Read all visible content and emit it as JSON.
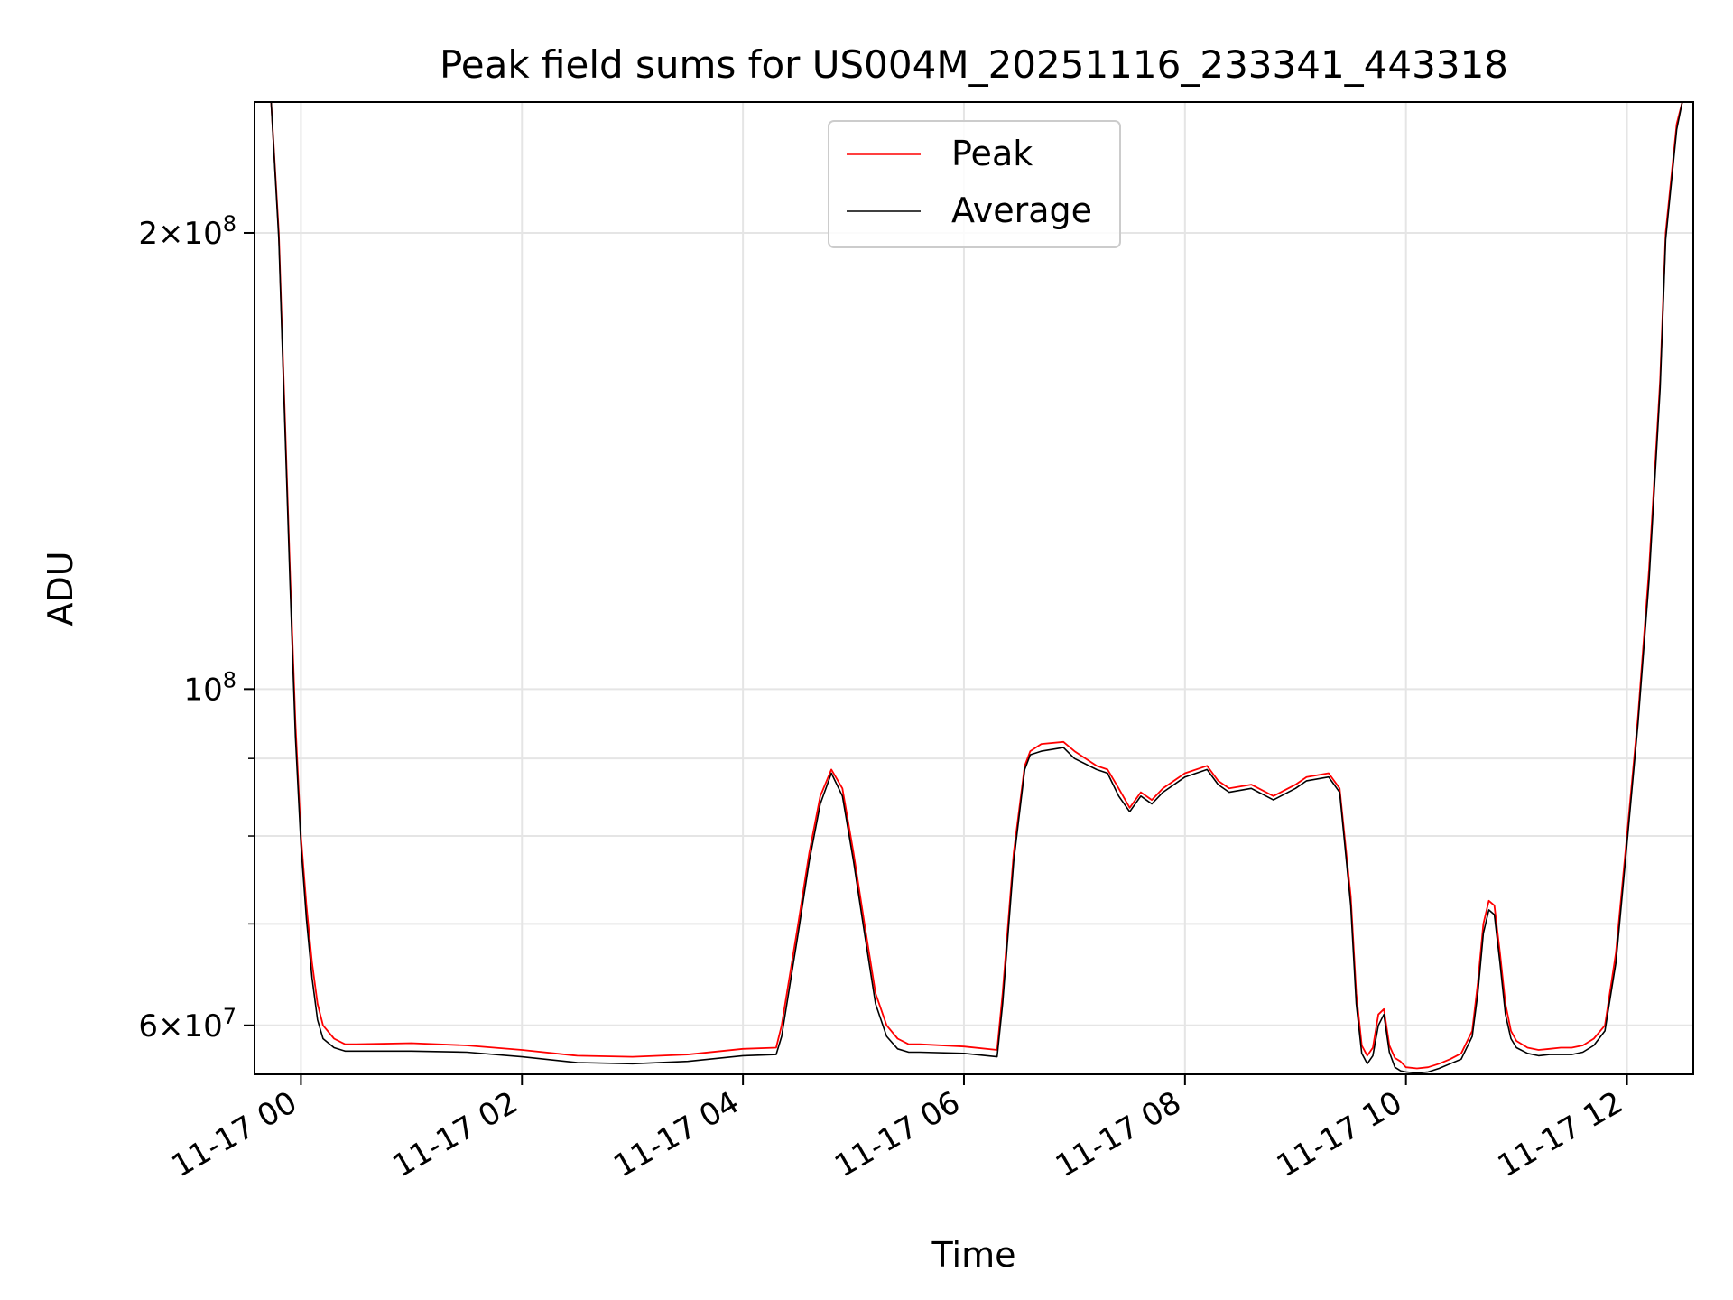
{
  "chart_data": {
    "type": "line",
    "title": "Peak field sums for US004M_20251116_233341_443318",
    "xlabel": "Time",
    "ylabel": "ADU",
    "yscale": "log",
    "grid": true,
    "legend_position": "top-center",
    "x_unit": "hours since 2025-11-17 00:00",
    "xlim": [
      -0.42,
      12.6
    ],
    "ylim": [
      55700000,
      244000000
    ],
    "x_ticks": [
      {
        "value": 0,
        "label": "11-17 00"
      },
      {
        "value": 2,
        "label": "11-17 02"
      },
      {
        "value": 4,
        "label": "11-17 04"
      },
      {
        "value": 6,
        "label": "11-17 06"
      },
      {
        "value": 8,
        "label": "11-17 08"
      },
      {
        "value": 10,
        "label": "11-17 10"
      },
      {
        "value": 12,
        "label": "11-17 12"
      }
    ],
    "y_major_ticks": [
      {
        "value": 60000000,
        "mantissa": "6",
        "exp": "7"
      },
      {
        "value": 100000000,
        "mantissa": "",
        "exp": "8"
      },
      {
        "value": 200000000,
        "mantissa": "2",
        "exp": "8"
      }
    ],
    "y_minor_ticks": [
      70000000,
      80000000,
      90000000
    ],
    "series": [
      {
        "name": "Peak",
        "color": "#ff0000",
        "x": [
          -0.3,
          -0.27,
          -0.2,
          -0.1,
          -0.05,
          0,
          0.05,
          0.1,
          0.15,
          0.2,
          0.3,
          0.4,
          0.5,
          1,
          1.5,
          2,
          2.5,
          3,
          3.5,
          4,
          4.3,
          4.35,
          4.5,
          4.6,
          4.7,
          4.8,
          4.9,
          5,
          5.1,
          5.2,
          5.3,
          5.4,
          5.5,
          5.6,
          6,
          6.3,
          6.35,
          6.45,
          6.55,
          6.6,
          6.7,
          6.9,
          7,
          7.2,
          7.3,
          7.4,
          7.5,
          7.6,
          7.7,
          7.8,
          8,
          8.2,
          8.3,
          8.4,
          8.6,
          8.8,
          9,
          9.1,
          9.3,
          9.4,
          9.5,
          9.55,
          9.6,
          9.65,
          9.7,
          9.75,
          9.8,
          9.85,
          9.9,
          9.95,
          10,
          10.1,
          10.2,
          10.3,
          10.4,
          10.5,
          10.6,
          10.65,
          10.7,
          10.75,
          10.8,
          10.85,
          10.9,
          10.95,
          11,
          11.1,
          11.2,
          11.3,
          11.4,
          11.5,
          11.6,
          11.7,
          11.8,
          11.9,
          12,
          12.1,
          12.2,
          12.3,
          12.35,
          12.45,
          12.5
        ],
        "values": [
          244000000,
          244000000,
          200000000,
          120000000,
          95000000,
          80000000,
          72000000,
          66000000,
          62000000,
          60000000,
          58800000,
          58300000,
          58300000,
          58400000,
          58200000,
          57800000,
          57300000,
          57200000,
          57400000,
          57900000,
          58000000,
          60000000,
          70000000,
          78000000,
          85000000,
          88500000,
          86000000,
          78000000,
          70000000,
          63000000,
          60000000,
          58800000,
          58300000,
          58300000,
          58100000,
          57800000,
          63000000,
          78000000,
          89000000,
          91000000,
          92000000,
          92300000,
          91000000,
          89000000,
          88500000,
          86000000,
          83500000,
          85500000,
          84500000,
          86000000,
          88000000,
          89000000,
          87000000,
          86000000,
          86500000,
          85000000,
          86500000,
          87500000,
          88000000,
          86000000,
          73000000,
          63000000,
          58200000,
          57300000,
          58000000,
          61000000,
          61500000,
          58200000,
          57100000,
          56800000,
          56300000,
          56200000,
          56300000,
          56600000,
          57000000,
          57500000,
          59500000,
          64000000,
          70000000,
          72500000,
          72000000,
          67000000,
          62000000,
          59500000,
          58600000,
          58000000,
          57800000,
          57900000,
          58000000,
          58000000,
          58200000,
          58800000,
          60000000,
          67000000,
          80000000,
          96000000,
          120000000,
          160000000,
          200000000,
          236000000,
          244000000
        ]
      },
      {
        "name": "Average",
        "color": "#000000",
        "x": [
          -0.3,
          -0.27,
          -0.2,
          -0.1,
          -0.05,
          0,
          0.05,
          0.1,
          0.15,
          0.2,
          0.3,
          0.4,
          0.5,
          1,
          1.5,
          2,
          2.5,
          3,
          3.5,
          4,
          4.3,
          4.35,
          4.5,
          4.6,
          4.7,
          4.8,
          4.9,
          5,
          5.1,
          5.2,
          5.3,
          5.4,
          5.5,
          5.6,
          6,
          6.3,
          6.35,
          6.45,
          6.55,
          6.6,
          6.7,
          6.9,
          7,
          7.2,
          7.3,
          7.4,
          7.5,
          7.6,
          7.7,
          7.8,
          8,
          8.2,
          8.3,
          8.4,
          8.6,
          8.8,
          9,
          9.1,
          9.3,
          9.4,
          9.5,
          9.55,
          9.6,
          9.65,
          9.7,
          9.75,
          9.8,
          9.85,
          9.9,
          9.95,
          10,
          10.1,
          10.2,
          10.3,
          10.4,
          10.5,
          10.6,
          10.65,
          10.7,
          10.75,
          10.8,
          10.85,
          10.9,
          10.95,
          11,
          11.1,
          11.2,
          11.3,
          11.4,
          11.5,
          11.6,
          11.7,
          11.8,
          11.9,
          12,
          12.1,
          12.2,
          12.3,
          12.35,
          12.45,
          12.5
        ],
        "values": [
          244000000,
          244000000,
          198000000,
          118000000,
          93000000,
          79000000,
          70500000,
          64500000,
          60500000,
          58800000,
          58000000,
          57700000,
          57700000,
          57700000,
          57600000,
          57200000,
          56700000,
          56600000,
          56800000,
          57300000,
          57400000,
          59000000,
          69000000,
          77000000,
          84000000,
          88000000,
          85000000,
          77000000,
          69000000,
          62000000,
          59000000,
          57900000,
          57600000,
          57600000,
          57500000,
          57200000,
          62000000,
          77000000,
          88500000,
          90500000,
          91000000,
          91500000,
          90000000,
          88500000,
          88000000,
          85000000,
          83000000,
          85000000,
          84000000,
          85500000,
          87500000,
          88500000,
          86500000,
          85500000,
          86000000,
          84500000,
          86000000,
          87000000,
          87500000,
          85500000,
          72000000,
          62000000,
          57500000,
          56600000,
          57300000,
          60000000,
          61000000,
          57600000,
          56300000,
          56000000,
          55900000,
          55800000,
          55900000,
          56200000,
          56600000,
          57000000,
          59000000,
          63000000,
          69000000,
          71500000,
          71000000,
          66000000,
          61000000,
          58800000,
          58000000,
          57500000,
          57300000,
          57400000,
          57400000,
          57400000,
          57600000,
          58200000,
          59500000,
          66000000,
          79000000,
          95000000,
          118000000,
          158000000,
          198000000,
          234000000,
          244000000
        ]
      }
    ]
  }
}
